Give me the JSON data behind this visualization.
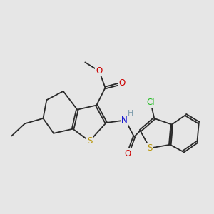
{
  "background_color": "#e6e6e6",
  "bond_color": "#2a2a2a",
  "atom_colors": {
    "S": "#b8960a",
    "O": "#cc0000",
    "N": "#0000cc",
    "Cl": "#22bb22",
    "H": "#7a9aaa",
    "C": "#2a2a2a"
  },
  "lw": 1.3
}
